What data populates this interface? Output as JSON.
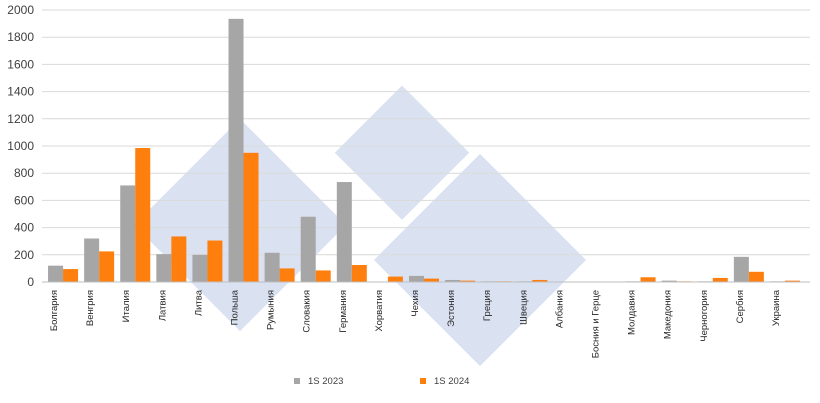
{
  "chart_data": {
    "type": "bar",
    "categories": [
      "Болгария",
      "Венгрия",
      "Италия",
      "Латвия",
      "Литва",
      "Польша",
      "Румыния",
      "Словакия",
      "Германия",
      "Хорватия",
      "Чехия",
      "Эстония",
      "Греция",
      "Швеция",
      "Албания",
      "Босния и Герце",
      "Молдавия",
      "Македония",
      "Черногория",
      "Сербия",
      "Украина"
    ],
    "series": [
      {
        "name": "1S 2023",
        "color": "#a6a6a6",
        "values": [
          120,
          320,
          710,
          205,
          200,
          1935,
          215,
          480,
          735,
          0,
          45,
          15,
          5,
          5,
          0,
          0,
          5,
          10,
          5,
          185,
          5
        ]
      },
      {
        "name": "1S 2024",
        "color": "#ff7f0e",
        "values": [
          95,
          225,
          985,
          335,
          305,
          950,
          100,
          85,
          125,
          40,
          25,
          10,
          5,
          15,
          0,
          0,
          35,
          5,
          30,
          75,
          10
        ]
      }
    ],
    "ylim": [
      0,
      2000
    ],
    "yticks": [
      0,
      200,
      400,
      600,
      800,
      1000,
      1200,
      1400,
      1600,
      1800,
      2000
    ],
    "grid": true,
    "legend": "bottom"
  }
}
